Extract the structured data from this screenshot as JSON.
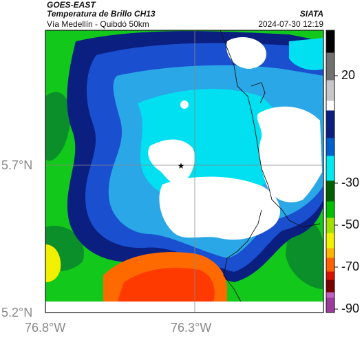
{
  "header": {
    "satellite": "GOES-EAST",
    "product": "Temperatura de Brillo CH13",
    "region": "Vía Medellín - Quibdó 50km",
    "organization": "SIATA",
    "timestamp": "2024-07-30 12:19"
  },
  "axes": {
    "lat_labels": [
      "5.7°N",
      "5.2°N"
    ],
    "lon_labels": [
      "76.8°W",
      "76.3°W"
    ]
  },
  "colorbar": {
    "ticks": [
      "20",
      "-30",
      "-50",
      "-70",
      "-90"
    ],
    "colors": [
      "#9c3c9c",
      "#c060c0",
      "#7a0000",
      "#d81000",
      "#ff6000",
      "#ffb400",
      "#f0f000",
      "#a0e000",
      "#00c000",
      "#006000",
      "#00e8f0",
      "#0060d0",
      "#0a1f80",
      "#ffffff",
      "#c8c8c8",
      "#707070",
      "#000000"
    ]
  },
  "markers": [
    {
      "name": "star-marker",
      "symbol": "★"
    }
  ],
  "colors": {
    "cloud_white": "#ffffff",
    "deep_blue": "#0a1f80",
    "blue": "#1a4fcf",
    "cyan": "#00e0f0",
    "green": "#12c81a",
    "dark_green": "#0a8f2a",
    "orange": "#ff6a00",
    "gridline": "#888888"
  }
}
